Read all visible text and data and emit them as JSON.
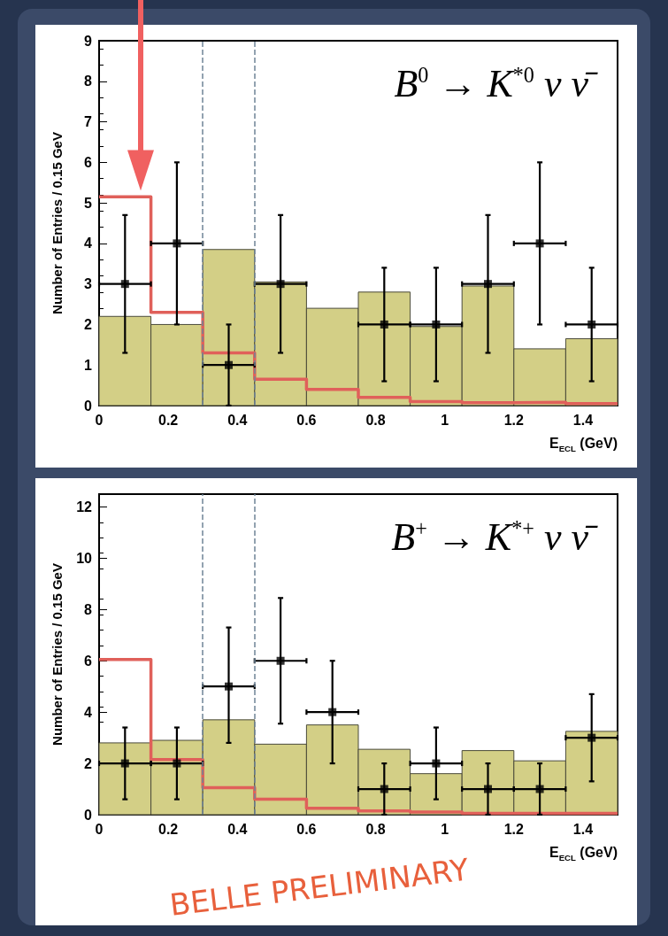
{
  "chart_data": [
    {
      "type": "histogram",
      "title": "B$^{0}$ → K$^{*0}$ ν ν̄",
      "xlabel": "E$_{ECL}$ (GeV)",
      "ylabel": "Number of Entries / 0.15 GeV",
      "bins": [
        0,
        0.15,
        0.3,
        0.45,
        0.6,
        0.75,
        0.9,
        1.05,
        1.2,
        1.35,
        1.5
      ],
      "xlim": [
        0,
        1.5
      ],
      "xticks": [
        0,
        0.2,
        0.4,
        0.6,
        0.8,
        1,
        1.2,
        1.4
      ],
      "ylim": [
        0,
        9
      ],
      "yticks": [
        0,
        1,
        2,
        3,
        4,
        5,
        6,
        7,
        8,
        9
      ],
      "ref_lines": [
        {
          "axis": "x",
          "value": 0.3,
          "color": "#6f8496",
          "line_style": "dashed"
        },
        {
          "axis": "x",
          "value": 0.45,
          "color": "#6f8496",
          "line_style": "dashed"
        }
      ],
      "series": [
        {
          "color": "#d3cf86",
          "values": [
            2.2,
            2.0,
            3.85,
            3.05,
            2.4,
            2.8,
            1.95,
            2.95,
            1.4,
            1.65
          ]
        },
        {
          "type": "step",
          "color": "#e0605a",
          "x": [
            0,
            0.15,
            0.3,
            0.45,
            0.6,
            0.75,
            0.9,
            1.05,
            1.2,
            1.35,
            1.5
          ],
          "values": [
            5.15,
            2.3,
            1.3,
            0.65,
            0.4,
            0.2,
            0.1,
            0.07,
            0.08,
            0.05,
            0.05
          ]
        },
        {
          "type": "scatter",
          "marker": "square",
          "color": "#000000",
          "x": [
            0.075,
            0.225,
            0.375,
            0.525,
            0.825,
            0.975,
            1.125,
            1.275,
            1.425
          ],
          "values": [
            3,
            4,
            1,
            3,
            2,
            2,
            3,
            4,
            2
          ],
          "errors": [
            [
              1.3,
              4.7
            ],
            [
              2,
              6
            ],
            [
              0,
              2
            ],
            [
              1.3,
              4.7
            ],
            [
              0.6,
              3.4
            ],
            [
              0.6,
              3.4
            ],
            [
              1.3,
              4.7
            ],
            [
              2,
              6
            ],
            [
              0.6,
              3.4
            ]
          ],
          "xerrors": [
            0.075,
            0.075,
            0.075,
            0.075,
            0.075,
            0.075,
            0.075,
            0.075,
            0.075
          ]
        }
      ]
    },
    {
      "type": "histogram",
      "title": "B$^{+}$ → K$^{*+}$ ν ν̄",
      "xlabel": "E$_{ECL}$ (GeV)",
      "ylabel": "Number of Entries / 0.15 GeV",
      "bins": [
        0,
        0.15,
        0.3,
        0.45,
        0.6,
        0.75,
        0.9,
        1.05,
        1.2,
        1.35,
        1.5
      ],
      "xlim": [
        0,
        1.5
      ],
      "xticks": [
        0,
        0.2,
        0.4,
        0.6,
        0.8,
        1,
        1.2,
        1.4
      ],
      "ylim": [
        0,
        12.5
      ],
      "yticks": [
        0,
        2,
        4,
        6,
        8,
        10,
        12
      ],
      "annotations": [
        "BELLE PRELIMINARY"
      ],
      "ref_lines": [
        {
          "axis": "x",
          "value": 0.3,
          "color": "#6f8496",
          "line_style": "dashed"
        },
        {
          "axis": "x",
          "value": 0.45,
          "color": "#6f8496",
          "line_style": "dashed"
        }
      ],
      "series": [
        {
          "color": "#d3cf86",
          "values": [
            2.8,
            2.9,
            3.7,
            2.75,
            3.5,
            2.55,
            1.6,
            2.5,
            2.1,
            3.25
          ]
        },
        {
          "type": "step",
          "color": "#e0605a",
          "x": [
            0,
            0.15,
            0.3,
            0.45,
            0.6,
            0.75,
            0.9,
            1.05,
            1.2,
            1.35,
            1.5
          ],
          "values": [
            6.05,
            2.15,
            1.05,
            0.6,
            0.25,
            0.15,
            0.1,
            0.05,
            0.05,
            0.05,
            0.05
          ]
        },
        {
          "type": "scatter",
          "marker": "square",
          "color": "#000000",
          "x": [
            0.075,
            0.225,
            0.375,
            0.525,
            0.675,
            0.825,
            0.975,
            1.125,
            1.275,
            1.425
          ],
          "values": [
            2,
            2,
            5,
            6,
            4,
            1,
            2,
            1,
            1,
            3
          ],
          "errors": [
            [
              0.6,
              3.4
            ],
            [
              0.6,
              3.4
            ],
            [
              2.8,
              7.3
            ],
            [
              3.55,
              8.45
            ],
            [
              2,
              6
            ],
            [
              0,
              2
            ],
            [
              0.6,
              3.4
            ],
            [
              0,
              2
            ],
            [
              0,
              2
            ],
            [
              1.3,
              4.7
            ]
          ],
          "xerrors": [
            0.075,
            0.075,
            0.075,
            0.075,
            0.075,
            0.075,
            0.075,
            0.075,
            0.075,
            0.075
          ]
        }
      ]
    }
  ]
}
